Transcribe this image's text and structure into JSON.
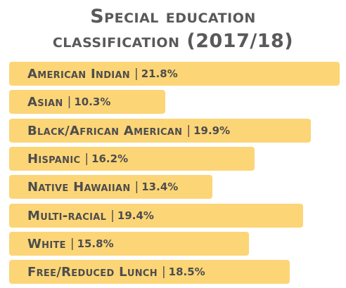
{
  "colors": {
    "bar": "#fcd577",
    "text": "#4d4d4d",
    "title": "#595959"
  },
  "chart_data": {
    "type": "bar",
    "orientation": "horizontal",
    "title": "Special education classification (2017/18)",
    "title_lines": [
      "Special education",
      "classification (2017/18)"
    ],
    "categories": [
      "American Indian",
      "Asian",
      "Black/African American",
      "Hispanic",
      "Native Hawaiian",
      "Multi-racial",
      "White",
      "Free/Reduced Lunch"
    ],
    "values": [
      21.8,
      10.3,
      19.9,
      16.2,
      13.4,
      19.4,
      15.8,
      18.5
    ],
    "value_labels": [
      "21.8%",
      "10.3%",
      "19.9%",
      "16.2%",
      "13.4%",
      "19.4%",
      "15.8%",
      "18.5%"
    ],
    "unit": "%",
    "grid": false,
    "legend": "none"
  }
}
